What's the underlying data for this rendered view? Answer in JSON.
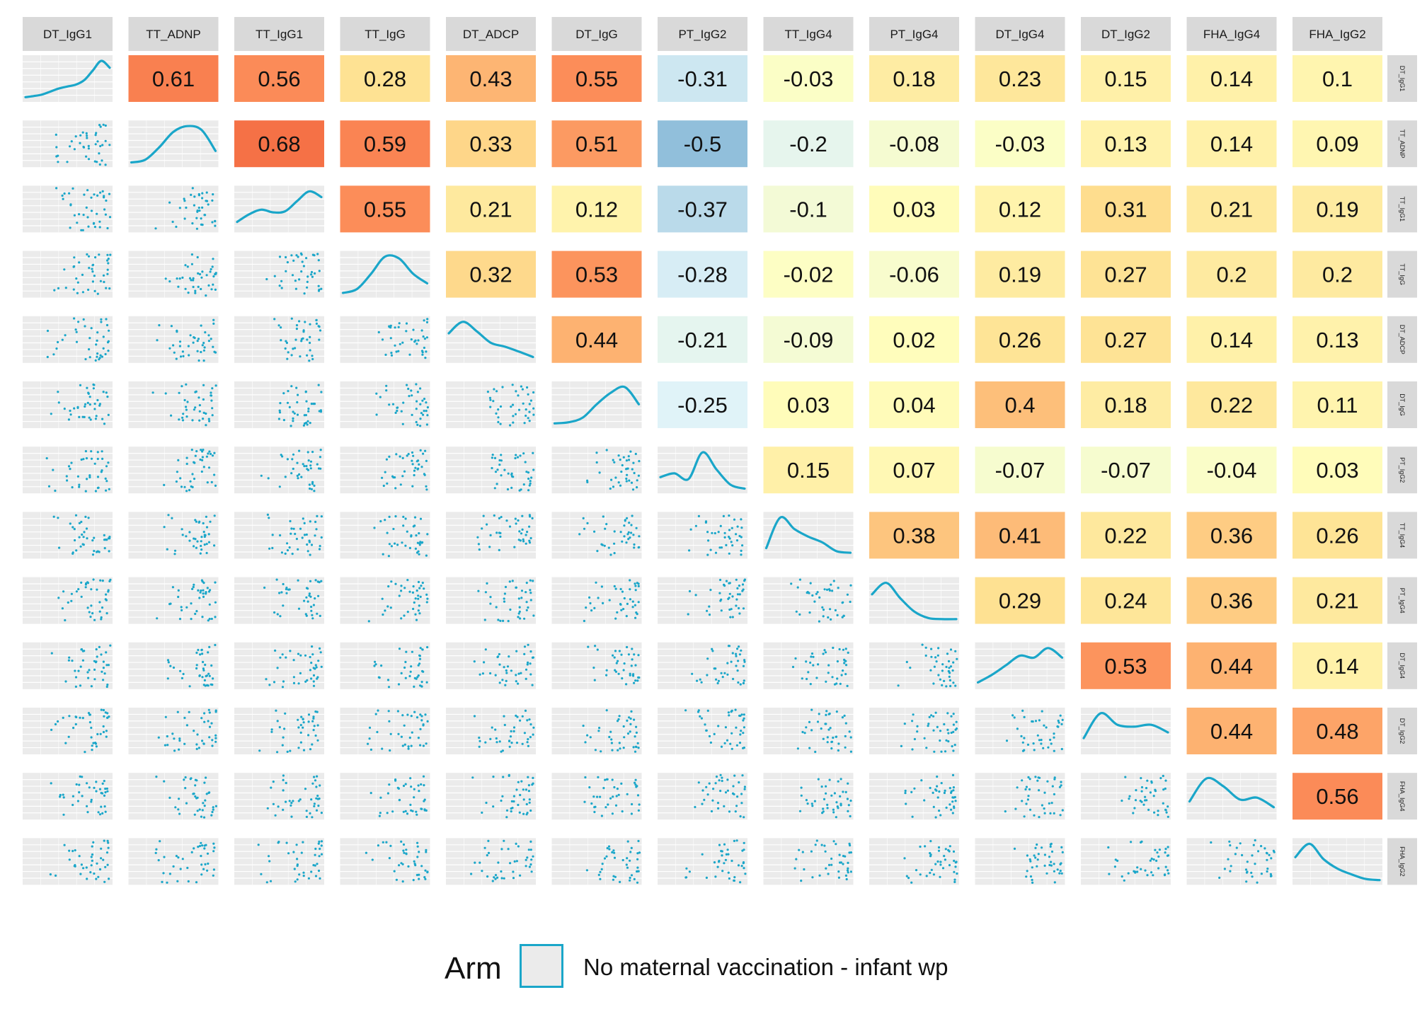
{
  "chart_data": {
    "type": "pairs_matrix",
    "variables": [
      "DT_IgG1",
      "TT_ADNP",
      "TT_IgG1",
      "TT_IgG",
      "DT_ADCP",
      "DT_IgG",
      "PT_IgG2",
      "TT_IgG4",
      "PT_IgG4",
      "DT_IgG4",
      "DT_IgG2",
      "FHA_IgG4",
      "FHA_IgG2"
    ],
    "correlation_labels": [
      [
        "",
        "0.61",
        "0.56",
        "0.28",
        "0.43",
        "0.55",
        "-0.31",
        "-0.03",
        "0.18",
        "0.23",
        "0.15",
        "0.14",
        "0.1"
      ],
      [
        "",
        "",
        "0.68",
        "0.59",
        "0.33",
        "0.51",
        "-0.5",
        "-0.2",
        "-0.08",
        "-0.03",
        "0.13",
        "0.14",
        "0.09"
      ],
      [
        "",
        "",
        "",
        "0.55",
        "0.21",
        "0.12",
        "-0.37",
        "-0.1",
        "0.03",
        "0.12",
        "0.31",
        "0.21",
        "0.19"
      ],
      [
        "",
        "",
        "",
        "",
        "0.32",
        "0.53",
        "-0.28",
        "-0.02",
        "-0.06",
        "0.19",
        "0.27",
        "0.2",
        "0.2"
      ],
      [
        "",
        "",
        "",
        "",
        "",
        "0.44",
        "-0.21",
        "-0.09",
        "0.02",
        "0.26",
        "0.27",
        "0.14",
        "0.13"
      ],
      [
        "",
        "",
        "",
        "",
        "",
        "",
        "-0.25",
        "0.03",
        "0.04",
        "0.4",
        "0.18",
        "0.22",
        "0.11"
      ],
      [
        "",
        "",
        "",
        "",
        "",
        "",
        "",
        "0.15",
        "0.07",
        "-0.07",
        "-0.07",
        "-0.04",
        "0.03"
      ],
      [
        "",
        "",
        "",
        "",
        "",
        "",
        "",
        "",
        "0.38",
        "0.41",
        "0.22",
        "0.36",
        "0.26"
      ],
      [
        "",
        "",
        "",
        "",
        "",
        "",
        "",
        "",
        "",
        "0.29",
        "0.24",
        "0.36",
        "0.21"
      ],
      [
        "",
        "",
        "",
        "",
        "",
        "",
        "",
        "",
        "",
        "",
        "0.53",
        "0.44",
        "0.14"
      ],
      [
        "",
        "",
        "",
        "",
        "",
        "",
        "",
        "",
        "",
        "",
        "",
        "0.44",
        "0.48"
      ],
      [
        "",
        "",
        "",
        "",
        "",
        "",
        "",
        "",
        "",
        "",
        "",
        "",
        "0.56"
      ],
      [
        "",
        "",
        "",
        "",
        "",
        "",
        "",
        "",
        "",
        "",
        "",
        "",
        ""
      ]
    ],
    "density_curves": [
      [
        0.05,
        0.08,
        0.12,
        0.2,
        0.28,
        0.33,
        0.38,
        0.5,
        0.75,
        1.0,
        0.82
      ],
      [
        0.05,
        0.12,
        0.45,
        0.85,
        1.0,
        0.9,
        0.35
      ],
      [
        0.2,
        0.4,
        0.52,
        0.45,
        0.48,
        0.75,
        1.0,
        0.85
      ],
      [
        0.05,
        0.15,
        0.55,
        1.0,
        0.95,
        0.55,
        0.3
      ],
      [
        0.7,
        1.0,
        0.75,
        0.45,
        0.35,
        0.22,
        0.08
      ],
      [
        0.05,
        0.08,
        0.2,
        0.55,
        0.85,
        1.0,
        0.55
      ],
      [
        0.35,
        0.45,
        0.3,
        1.0,
        0.55,
        0.15,
        0.05
      ],
      [
        0.2,
        1.0,
        0.7,
        0.5,
        0.35,
        0.12,
        0.08
      ],
      [
        0.7,
        1.0,
        0.6,
        0.25,
        0.08,
        0.05,
        0.05
      ],
      [
        0.1,
        0.3,
        0.55,
        0.8,
        0.75,
        1.0,
        0.75
      ],
      [
        0.35,
        1.0,
        0.7,
        0.65,
        0.7,
        0.5
      ],
      [
        0.4,
        1.0,
        0.8,
        0.45,
        0.5,
        0.25
      ],
      [
        0.65,
        1.0,
        0.6,
        0.35,
        0.2,
        0.08,
        0.05
      ]
    ],
    "legend": {
      "title": "Arm",
      "entries": [
        {
          "label": "No maternal vaccination - infant wp",
          "color": "#1aa6c9"
        }
      ],
      "position": "bottom"
    },
    "colors": {
      "series": "#1aa6c9",
      "panel_background": "#ebebeb",
      "strip_background": "#d9d9d9",
      "correlation_scale": [
        "#4575b4",
        "#91bfdb",
        "#e0f3f8",
        "#ffffbf",
        "#fee090",
        "#fc8d59",
        "#f46d43"
      ]
    }
  }
}
